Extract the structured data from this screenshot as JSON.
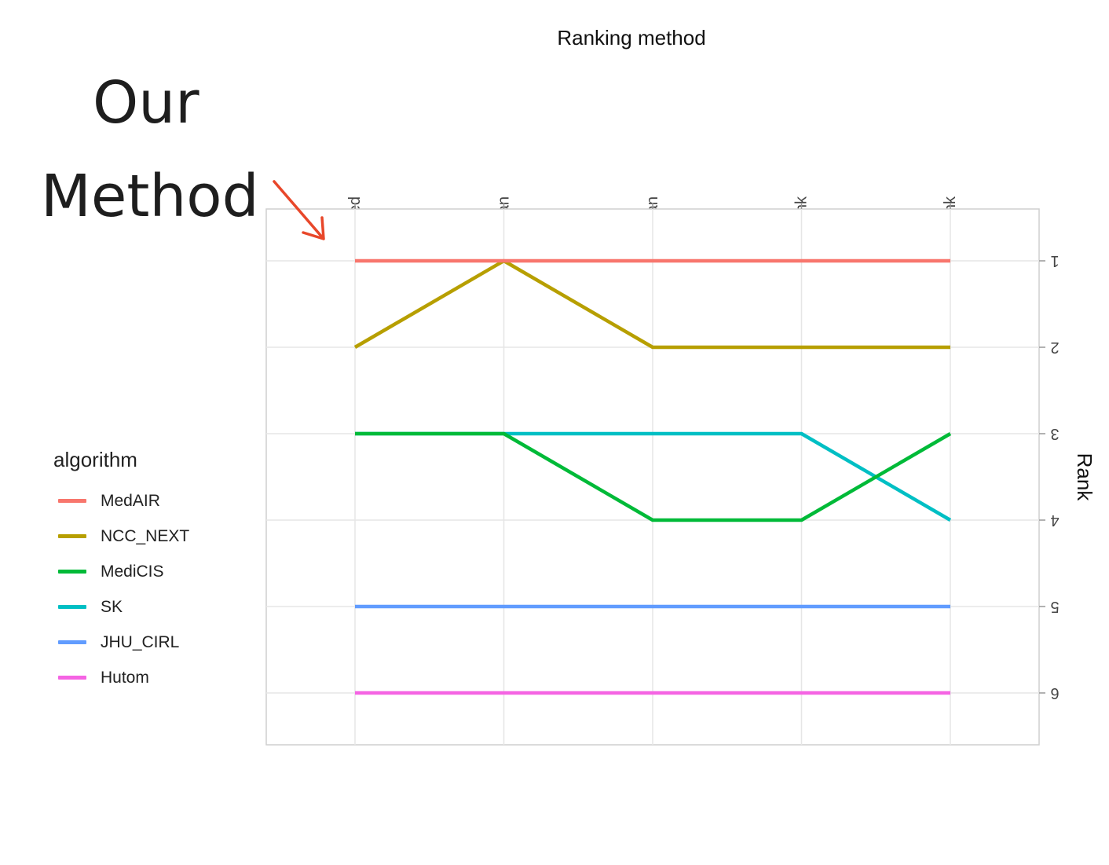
{
  "chart_data": {
    "type": "line",
    "title": "Ranking method",
    "xlabel": "Ranking method",
    "ylabel": "Rank",
    "categories": [
      "testBased",
      "rankThenMedian",
      "rankThenMean",
      "medianThenRank",
      "meanThenRank"
    ],
    "yticks": [
      "1",
      "2",
      "3",
      "4",
      "5",
      "6"
    ],
    "ylim": [
      0.4,
      6.6
    ],
    "y_reversed": true,
    "grid": true,
    "legend": {
      "title": "algorithm",
      "placement": "left"
    },
    "series": [
      {
        "name": "MedAIR",
        "color": "#F8766D",
        "values": [
          1,
          1,
          1,
          1,
          1
        ]
      },
      {
        "name": "NCC_NEXT",
        "color": "#B79F00",
        "values": [
          2,
          1,
          2,
          2,
          2
        ]
      },
      {
        "name": "MediCIS",
        "color": "#00BA38",
        "values": [
          3,
          3,
          4,
          4,
          3
        ]
      },
      {
        "name": "SK",
        "color": "#00BFC4",
        "values": [
          3,
          3,
          3,
          3,
          4
        ]
      },
      {
        "name": "JHU_CIRL",
        "color": "#619CFF",
        "values": [
          5,
          5,
          5,
          5,
          5
        ]
      },
      {
        "name": "Hutom",
        "color": "#F564E3",
        "values": [
          6,
          6,
          6,
          6,
          6
        ]
      }
    ]
  },
  "annotation": {
    "line1": "Our",
    "line2": "Method",
    "arrow_color": "#E8472A",
    "target": "testBased"
  }
}
